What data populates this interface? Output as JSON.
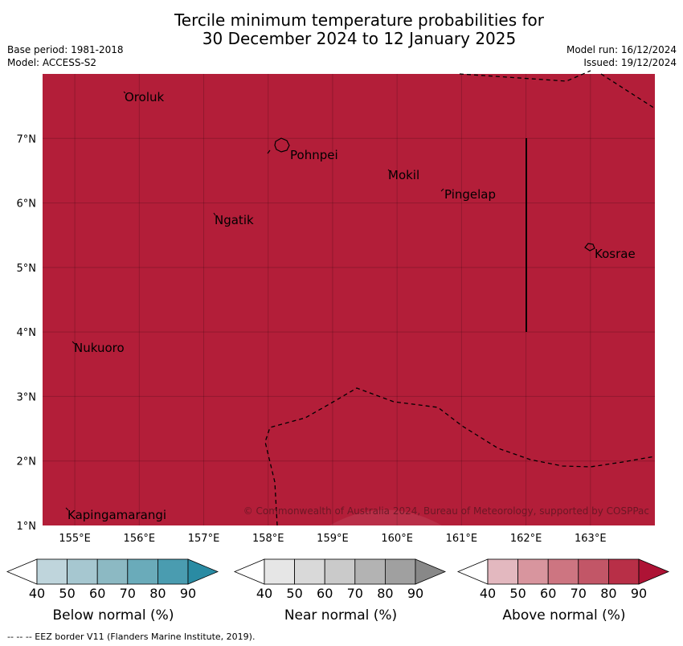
{
  "title_line1": "Tercile minimum temperature probabilities for",
  "title_line2": "30 December 2024 to 12 January 2025",
  "base_period": "Base period: 1981-2018",
  "model": "Model: ACCESS-S2",
  "model_run": "Model run: 16/12/2024",
  "issued": "Issued: 19/12/2024",
  "copyright": "© Commonwealth of Australia 2024, Bureau of Meteorology, supported by COSPPac",
  "footnote": "--  --  -- EEZ border V11 (Flanders Marine Institute, 2019).",
  "map": {
    "lon_range": [
      154.5,
      164
    ],
    "lat_range": [
      1,
      8
    ],
    "lon_ticks": [
      "155°E",
      "156°E",
      "157°E",
      "158°E",
      "159°E",
      "160°E",
      "161°E",
      "162°E",
      "163°E"
    ],
    "lat_ticks": [
      "7°N",
      "6°N",
      "5°N",
      "4°N",
      "3°N",
      "2°N",
      "1°N"
    ],
    "fill_category": "Above normal",
    "fill_color": "#b31e39",
    "places": [
      "Oroluk",
      "Pohnpei",
      "Mokil",
      "Pingelap",
      "Ngatik",
      "Kosrae",
      "Nukuoro",
      "Kapingamarangi"
    ]
  },
  "colorbars": [
    {
      "title": "Below normal (%)",
      "ticks": [
        "40",
        "50",
        "60",
        "70",
        "80",
        "90"
      ],
      "colors": [
        "#ffffff",
        "#bfd5dc",
        "#a6c7d0",
        "#8cb9c3",
        "#6aabba",
        "#4a9cb0",
        "#2a8ba3"
      ]
    },
    {
      "title": "Near normal (%)",
      "ticks": [
        "40",
        "50",
        "60",
        "70",
        "80",
        "90"
      ],
      "colors": [
        "#ffffff",
        "#e6e6e6",
        "#d9d9d9",
        "#cacaca",
        "#b3b3b3",
        "#a0a0a0",
        "#888888"
      ]
    },
    {
      "title": "Above normal (%)",
      "ticks": [
        "40",
        "50",
        "60",
        "70",
        "80",
        "90"
      ],
      "colors": [
        "#ffffff",
        "#e3b8bf",
        "#d8959e",
        "#cd7581",
        "#c25667",
        "#b82f47",
        "#ae1335"
      ]
    }
  ]
}
